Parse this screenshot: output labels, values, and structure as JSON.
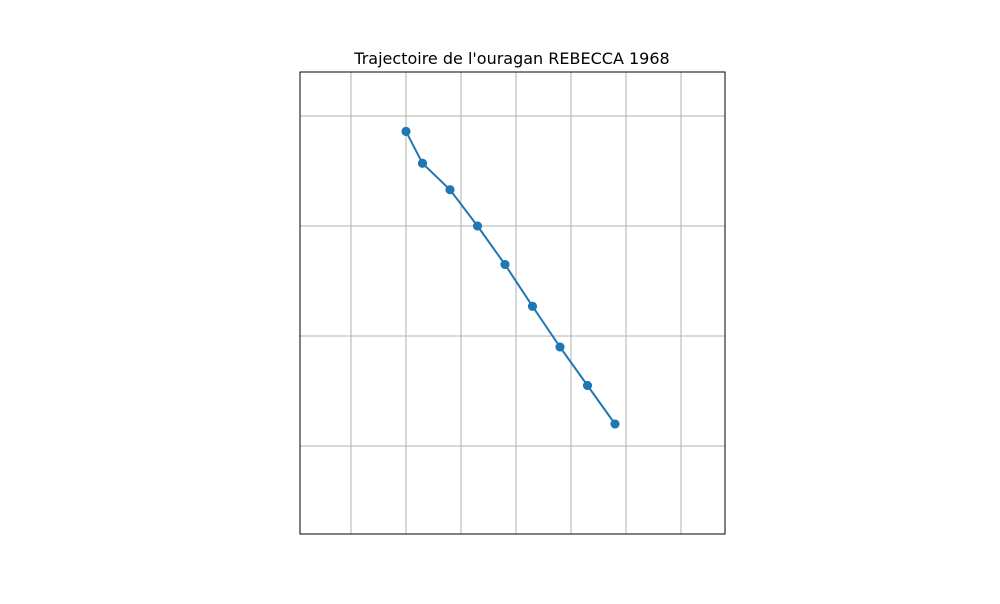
{
  "chart_data": {
    "type": "line",
    "title": "Trajectoire de l'ouragan REBECCA 1968",
    "xlabel": "",
    "ylabel": "",
    "xlim": [
      0,
      7.727
    ],
    "ylim": [
      0,
      4.2
    ],
    "grid": true,
    "series": [
      {
        "x": [
          5.727,
          5.227,
          4.727,
          4.227,
          3.727,
          3.227,
          2.727,
          2.227,
          1.927,
          1.927,
          2.227,
          2.727,
          3.227,
          3.727,
          4.227,
          4.727,
          5.227,
          5.727
        ],
        "y": [
          1.0,
          1.35,
          1.7,
          2.07,
          2.45,
          2.8,
          3.13,
          3.37,
          3.66,
          3.66,
          3.37,
          3.13,
          2.8,
          2.45,
          2.07,
          1.7,
          1.35,
          1.0
        ],
        "marker": "o",
        "color": "#1f77b4"
      }
    ],
    "x_gridlines": [
      0.927,
      1.927,
      2.927,
      3.927,
      4.927,
      5.927,
      6.927
    ],
    "y_gridlines": [
      0.8,
      1.8,
      2.8,
      3.8
    ]
  }
}
